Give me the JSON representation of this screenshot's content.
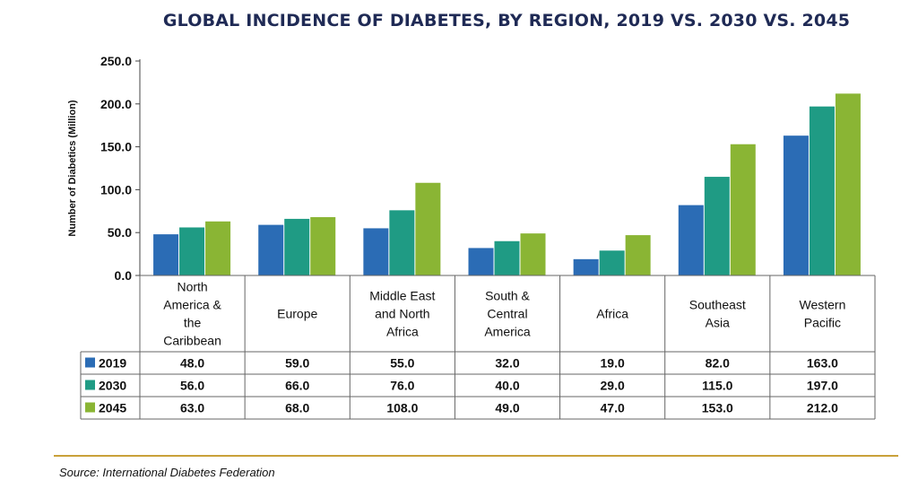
{
  "chart_data": {
    "type": "bar",
    "title": "GLOBAL INCIDENCE OF DIABETES, BY REGION, 2019 VS. 2030 VS. 2045",
    "ylabel": "Number of Diabetics (Million)",
    "ylim": [
      0,
      250
    ],
    "yticks": [
      "0.0",
      "50.0",
      "100.0",
      "150.0",
      "200.0",
      "250.0"
    ],
    "categories": [
      [
        "North",
        "America &",
        "the",
        "Caribbean"
      ],
      [
        "Europe"
      ],
      [
        "Middle East",
        "and North",
        "Africa"
      ],
      [
        "South &",
        "Central",
        "America"
      ],
      [
        "Africa"
      ],
      [
        "Southeast",
        "Asia"
      ],
      [
        "Western",
        "Pacific"
      ]
    ],
    "series": [
      {
        "name": "2019",
        "color": "#2b6cb5",
        "values": [
          48.0,
          59.0,
          55.0,
          32.0,
          19.0,
          82.0,
          163.0
        ],
        "labels": [
          "48.0",
          "59.0",
          "55.0",
          "32.0",
          "19.0",
          "82.0",
          "163.0"
        ]
      },
      {
        "name": "2030",
        "color": "#1f9b84",
        "values": [
          56.0,
          66.0,
          76.0,
          40.0,
          29.0,
          115.0,
          197.0
        ],
        "labels": [
          "56.0",
          "66.0",
          "76.0",
          "40.0",
          "29.0",
          "115.0",
          "197.0"
        ]
      },
      {
        "name": "2045",
        "color": "#8ab534",
        "values": [
          63.0,
          68.0,
          108.0,
          49.0,
          47.0,
          153.0,
          212.0
        ],
        "labels": [
          "63.0",
          "68.0",
          "108.0",
          "49.0",
          "47.0",
          "153.0",
          "212.0"
        ]
      }
    ],
    "legend": "data-table"
  },
  "source": "Source: International Diabetes Federation"
}
